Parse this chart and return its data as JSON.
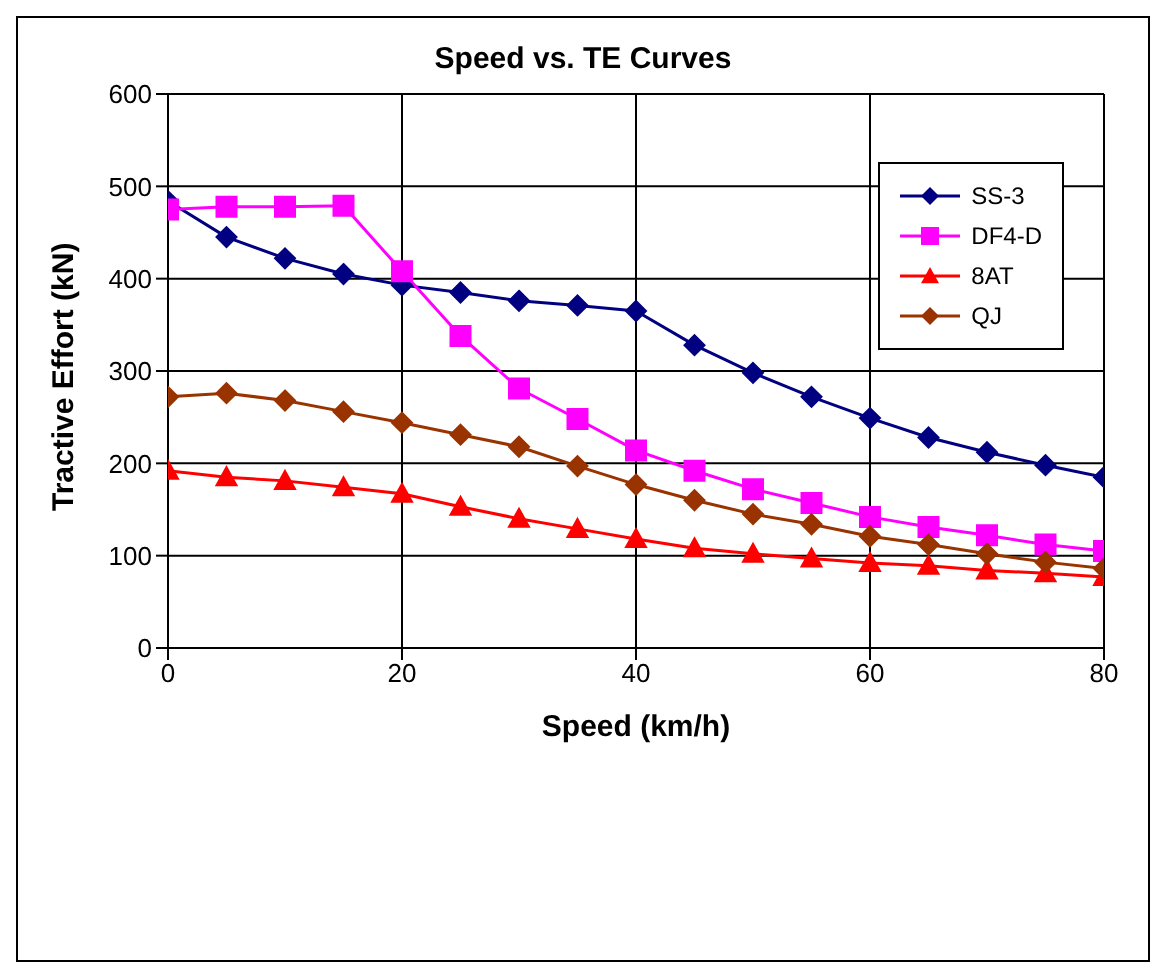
{
  "chart_data": {
    "type": "line",
    "title": "Speed vs. TE Curves",
    "xlabel": "Speed (km/h)",
    "ylabel": "Tractive Effort (kN)",
    "x": [
      0,
      5,
      10,
      15,
      20,
      25,
      30,
      35,
      40,
      45,
      50,
      55,
      60,
      65,
      70,
      75,
      80
    ],
    "series": [
      {
        "name": "SS-3",
        "color": "#000080",
        "marker": "diamond",
        "values": [
          484,
          445,
          422,
          405,
          393,
          385,
          376,
          371,
          365,
          328,
          298,
          272,
          249,
          228,
          212,
          198,
          185
        ]
      },
      {
        "name": "DF4-D",
        "color": "#ff00ff",
        "marker": "square",
        "values": [
          475,
          478,
          478,
          479,
          408,
          338,
          281,
          248,
          214,
          192,
          172,
          157,
          142,
          131,
          122,
          112,
          105
        ]
      },
      {
        "name": "8AT",
        "color": "#ff0000",
        "marker": "triangle",
        "values": [
          192,
          185,
          181,
          174,
          167,
          153,
          140,
          129,
          118,
          108,
          102,
          97,
          92,
          89,
          84,
          81,
          77
        ]
      },
      {
        "name": "QJ",
        "color": "#993300",
        "marker": "diamond",
        "values": [
          272,
          276,
          268,
          256,
          244,
          231,
          218,
          197,
          177,
          160,
          145,
          134,
          121,
          112,
          102,
          93,
          86
        ]
      }
    ],
    "xlim": [
      0,
      80
    ],
    "xticks": [
      0,
      20,
      40,
      60,
      80
    ],
    "ylim": [
      0,
      600
    ],
    "yticks": [
      0,
      100,
      200,
      300,
      400,
      500,
      600
    ],
    "grid": true,
    "legend": "top right",
    "line_style": "solid"
  }
}
